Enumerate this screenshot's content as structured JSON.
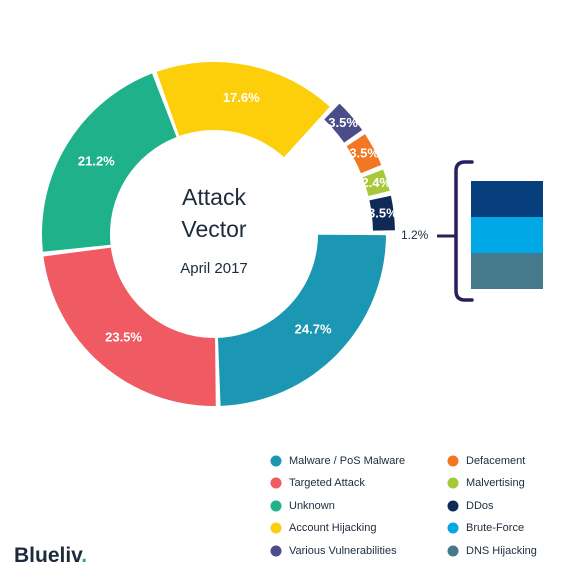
{
  "chart_data": {
    "type": "pie",
    "title": "Attack Vector",
    "subtitle": "April 2017",
    "slices": [
      {
        "name": "Malware / PoS Malware",
        "value": 24.7,
        "label": "24.7%",
        "color": "#1c97b3"
      },
      {
        "name": "Targeted Attack",
        "value": 23.5,
        "label": "23.5%",
        "color": "#ef5a63"
      },
      {
        "name": "Unknown",
        "value": 21.2,
        "label": "21.2%",
        "color": "#1fb28a"
      },
      {
        "name": "Account Hijacking",
        "value": 17.6,
        "label": "17.6%",
        "color": "#fccf0a"
      },
      {
        "name": "Various Vulnerabilities",
        "value": 3.5,
        "label": "3.5%",
        "color": "#4b4c8a"
      },
      {
        "name": "Defacement",
        "value": 3.5,
        "label": "3.5%",
        "color": "#f37622"
      },
      {
        "name": "Malvertising",
        "value": 2.4,
        "label": "2.4%",
        "color": "#a7c939"
      },
      {
        "name": "DDos",
        "value": 3.5,
        "label": "3.5%",
        "color": "#0f2a57"
      }
    ],
    "breakdown": {
      "parent_label": "3.5%",
      "external_label": "1.2%",
      "parts": [
        {
          "name": "DDos",
          "color": "#063f7b"
        },
        {
          "name": "Brute-Force",
          "color": "#00a8e6"
        },
        {
          "name": "DNS Hijacking",
          "color": "#46798b"
        }
      ]
    },
    "legend": [
      {
        "name": "Malware / PoS Malware",
        "color": "#1c97b3"
      },
      {
        "name": "Targeted Attack",
        "color": "#ef5a63"
      },
      {
        "name": "Unknown",
        "color": "#1fb28a"
      },
      {
        "name": "Account Hijacking",
        "color": "#fccf0a"
      },
      {
        "name": "Various Vulnerabilities",
        "color": "#4b4c8a"
      },
      {
        "name": "Defacement",
        "color": "#f37622"
      },
      {
        "name": "Malvertising",
        "color": "#a7c939"
      },
      {
        "name": "DDos",
        "color": "#0f2a57"
      },
      {
        "name": "Brute-Force",
        "color": "#00a8e6"
      },
      {
        "name": "DNS Hijacking",
        "color": "#46798b"
      }
    ],
    "legend_placement": "bottom-right"
  },
  "brand": {
    "logo_text": "Blueliv",
    "logo_dot": "."
  }
}
